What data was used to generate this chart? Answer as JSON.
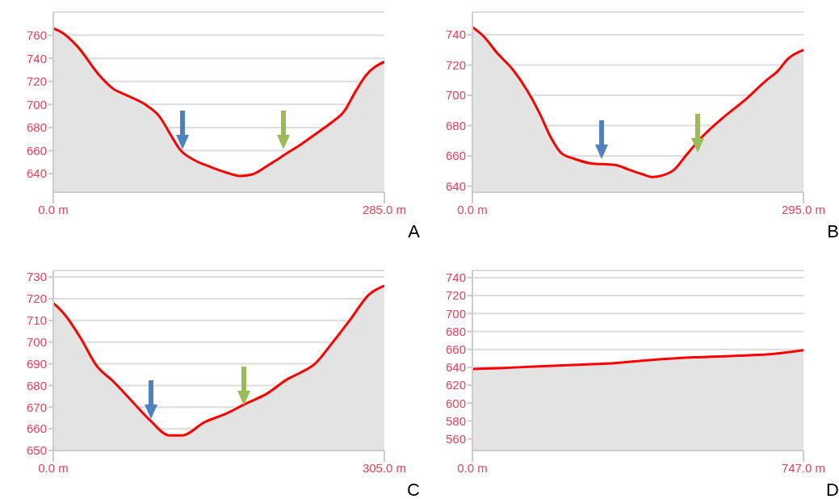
{
  "chart_data": [
    {
      "type": "area",
      "x": [
        0,
        8,
        21,
        39,
        51,
        63,
        79,
        91,
        102,
        109,
        121,
        135,
        149,
        161,
        170,
        186,
        200,
        214,
        228,
        239,
        251,
        260,
        269,
        285
      ],
      "series": [
        {
          "color": "#ff0000",
          "values": [
            766,
            762,
            750,
            726,
            714,
            708,
            700,
            690,
            672,
            661,
            652,
            646,
            641,
            638,
            639,
            648,
            657,
            666,
            676,
            684,
            695,
            711,
            725,
            737
          ]
        }
      ],
      "xlim": [
        0,
        285
      ],
      "xticks": [
        {
          "value": 0,
          "label": "0.0 m"
        },
        {
          "value": 285,
          "label": "285.0 m"
        }
      ],
      "ylim": [
        624,
        780
      ],
      "yticks": [
        640,
        660,
        680,
        700,
        720,
        740,
        760
      ],
      "grid": "y",
      "marker": "none",
      "annotations": [
        "A"
      ]
    },
    {
      "type": "area",
      "x": [
        0,
        10,
        22,
        36,
        49,
        60,
        70,
        79,
        91,
        106,
        127,
        139,
        151,
        160,
        169,
        180,
        190,
        204,
        223,
        243,
        262,
        272,
        281,
        295
      ],
      "series": [
        {
          "color": "#ff0000",
          "values": [
            745,
            739,
            728,
            717,
            703,
            688,
            672,
            662,
            658,
            655,
            654,
            651,
            648,
            646,
            647,
            651,
            660,
            672,
            685,
            697,
            710,
            716,
            724,
            730
          ]
        }
      ],
      "xlim": [
        0,
        295
      ],
      "xticks": [
        {
          "value": 0,
          "label": "0.0 m"
        },
        {
          "value": 295,
          "label": "295.0 m"
        }
      ],
      "ylim": [
        636,
        755
      ],
      "yticks": [
        640,
        660,
        680,
        700,
        720,
        740
      ],
      "grid": "y",
      "marker": "none",
      "annotations": [
        "B"
      ]
    },
    {
      "type": "area",
      "x": [
        0,
        10,
        25,
        40,
        55,
        72,
        89,
        107,
        119,
        139,
        159,
        179,
        196,
        216,
        228,
        241,
        256,
        273,
        291,
        305
      ],
      "series": [
        {
          "color": "#ff0000",
          "values": [
            718,
            713,
            702,
            689,
            682,
            673,
            664,
            657,
            657,
            663,
            667,
            672,
            676,
            683,
            686,
            690,
            699,
            710,
            722,
            726
          ]
        }
      ],
      "xlim": [
        0,
        305
      ],
      "xticks": [
        {
          "value": 0,
          "label": "0.0 m"
        },
        {
          "value": 305,
          "label": "305.0 m"
        }
      ],
      "ylim": [
        650,
        733
      ],
      "yticks": [
        650,
        660,
        670,
        680,
        690,
        700,
        710,
        720,
        730
      ],
      "grid": "y",
      "marker": "none",
      "annotations": [
        "C"
      ]
    },
    {
      "type": "area",
      "x": [
        0,
        60,
        150,
        250,
        330,
        400,
        500,
        600,
        680,
        747
      ],
      "series": [
        {
          "color": "#ff0000",
          "values": [
            638,
            639,
            641,
            643,
            645,
            648,
            651,
            653,
            655,
            659
          ]
        }
      ],
      "xlim": [
        0,
        747
      ],
      "xticks": [
        {
          "value": 0,
          "label": "0.0 m"
        },
        {
          "value": 747,
          "label": "747.0 m"
        }
      ],
      "ylim": [
        547,
        748
      ],
      "yticks": [
        560,
        580,
        600,
        620,
        640,
        660,
        680,
        700,
        720,
        740
      ],
      "grid": "y",
      "marker": "none",
      "annotations": [
        "D"
      ]
    }
  ]
}
